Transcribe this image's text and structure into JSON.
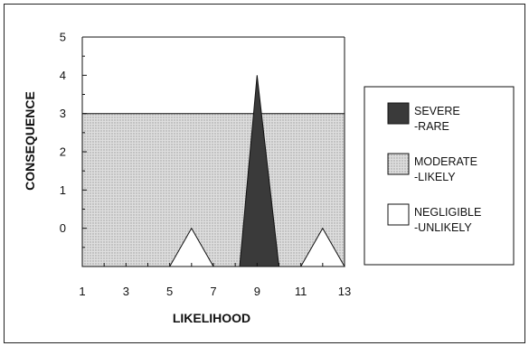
{
  "chart_data": {
    "type": "area",
    "xlabel": "LIKELIHOOD",
    "ylabel": "CONSEQUENCE",
    "xlim": [
      1,
      13
    ],
    "ylim": [
      -1,
      5
    ],
    "x_ticks": [
      "1",
      "3",
      "5",
      "7",
      "9",
      "11",
      "13"
    ],
    "y_ticks": [
      "0",
      "1",
      "2",
      "3",
      "4",
      "5"
    ],
    "grid": false,
    "legend_position": "right",
    "regions": [
      {
        "name": "MODERATE",
        "sub": "-LIKELY",
        "fill": "#d2d2d2",
        "points": [
          [
            1,
            3
          ],
          [
            13,
            3
          ],
          [
            13,
            -1
          ],
          [
            1,
            -1
          ]
        ]
      },
      {
        "name": "SEVERE",
        "sub": "-RARE",
        "fill": "#3a3a3a",
        "points": [
          [
            8.2,
            -1
          ],
          [
            9,
            4
          ],
          [
            10,
            -1
          ]
        ]
      },
      {
        "name": "NEGLIGIBLE",
        "sub": "-UNLIKELY",
        "fill": "#ffffff",
        "points": [
          [
            5,
            -1
          ],
          [
            6,
            0
          ],
          [
            7,
            -1
          ]
        ]
      },
      {
        "name": "NEGLIGIBLE",
        "sub": "-UNLIKELY",
        "fill": "#ffffff",
        "points": [
          [
            11,
            -1
          ],
          [
            12,
            0
          ],
          [
            13,
            -1
          ]
        ]
      }
    ],
    "legend": [
      {
        "name": "SEVERE",
        "sub": "-RARE",
        "fill": "#3a3a3a"
      },
      {
        "name": "MODERATE",
        "sub": "-LIKELY",
        "fill": "#d2d2d2"
      },
      {
        "name": "NEGLIGIBLE",
        "sub": "-UNLIKELY",
        "fill": "#ffffff"
      }
    ]
  }
}
